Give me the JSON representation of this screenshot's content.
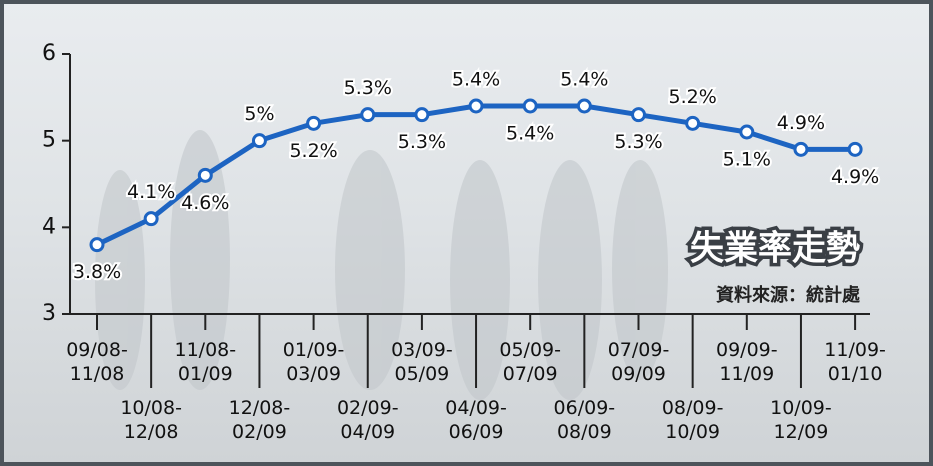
{
  "chart_data": {
    "type": "line",
    "title": "失業率走勢",
    "source": "資料來源：統計處",
    "categories": [
      "09/08-11/08",
      "10/08-12/08",
      "11/08-01/09",
      "12/08-02/09",
      "01/09-03/09",
      "02/09-04/09",
      "03/09-05/09",
      "04/09-06/09",
      "05/09-07/09",
      "06/09-08/09",
      "07/09-09/09",
      "08/09-10/09",
      "09/09-11/09",
      "10/09-12/09",
      "11/09-01/10"
    ],
    "values": [
      3.8,
      4.1,
      4.6,
      5,
      5.2,
      5.3,
      5.3,
      5.4,
      5.4,
      5.4,
      5.3,
      5.2,
      5.1,
      4.9,
      4.9
    ],
    "value_labels": [
      "3.8%",
      "4.1%",
      "4.6%",
      "5%",
      "5.2%",
      "5.3%",
      "5.3%",
      "5.4%",
      "5.4%",
      "5.4%",
      "5.3%",
      "5.2%",
      "5.1%",
      "4.9%",
      "4.9%"
    ],
    "color": "#1d64c2",
    "ylim": [
      3,
      6
    ],
    "yticks": [
      3,
      4,
      5,
      6
    ]
  }
}
